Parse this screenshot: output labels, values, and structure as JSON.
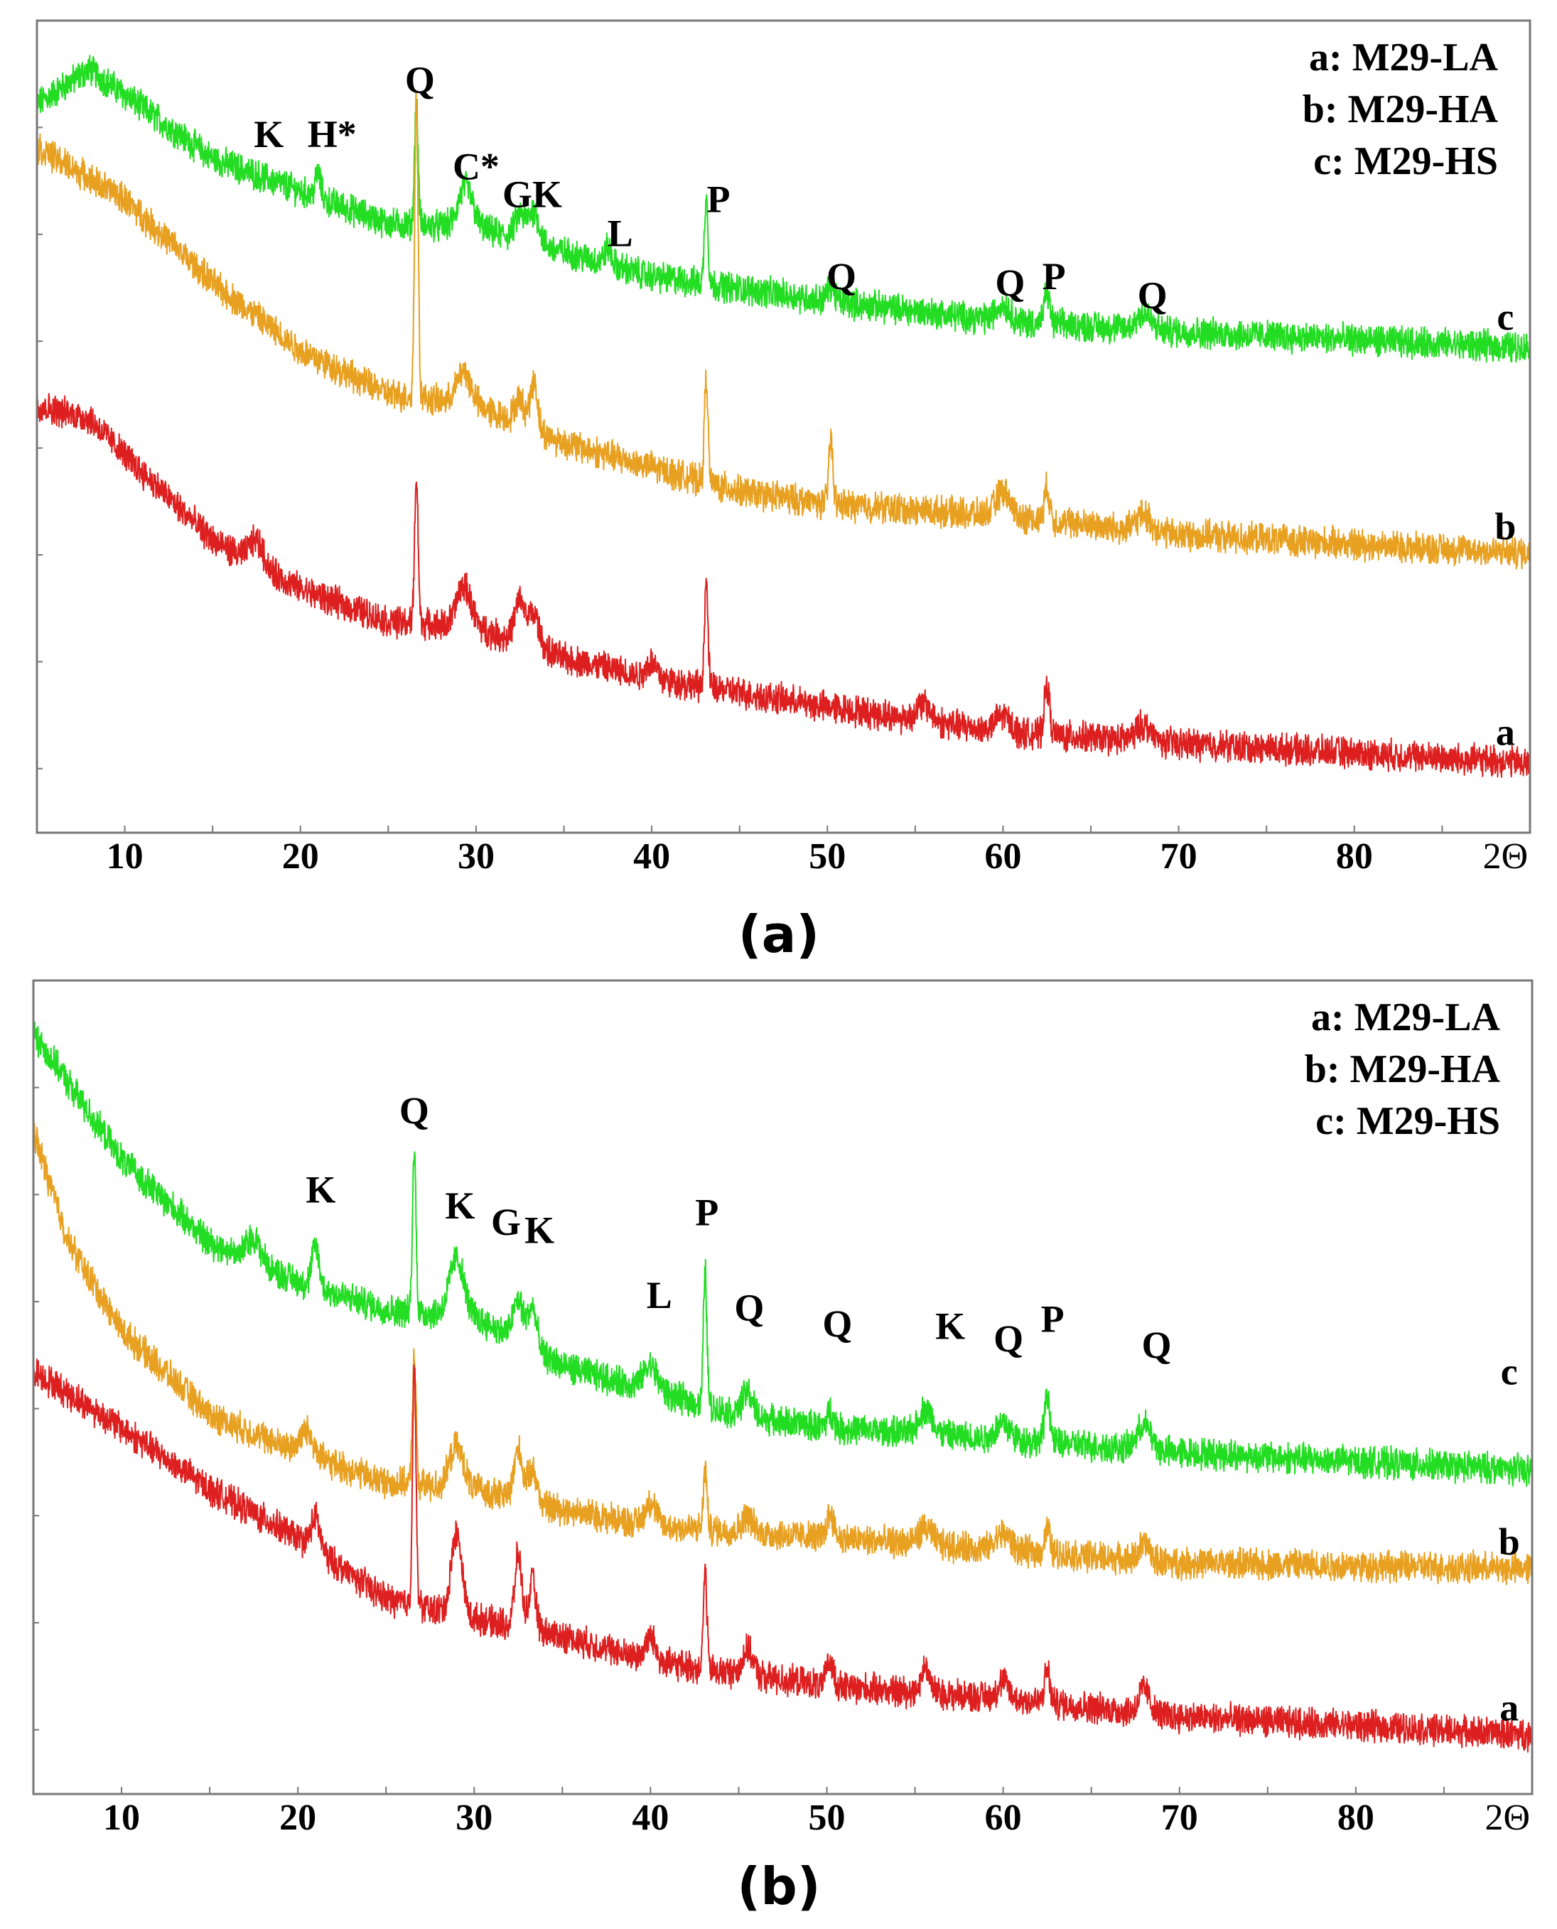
{
  "chart_data": [
    {
      "type": "line",
      "panel_label": "(a)",
      "xlabel": "2Θ",
      "xlim": [
        5,
        90
      ],
      "ylim": [
        0,
        100
      ],
      "xticks": [
        10,
        20,
        30,
        40,
        50,
        60,
        70,
        80
      ],
      "xtick_labels": [
        "10",
        "20",
        "30",
        "40",
        "50",
        "60",
        "70",
        "80"
      ],
      "ylabel": "",
      "legend": {
        "position": "top-right",
        "entries": [
          "a: M29-LA",
          "b: M29-HA",
          "c: M29-HS"
        ]
      },
      "series": [
        {
          "name": "c",
          "tag": "c",
          "color": "#22dd22",
          "background": [
            [
              5,
              89.7
            ],
            [
              8,
              94
            ],
            [
              15,
              83
            ],
            [
              20,
              79
            ],
            [
              25,
              75
            ],
            [
              30,
              74.5
            ],
            [
              35,
              71.5
            ],
            [
              40,
              68.5
            ],
            [
              50,
              65.5
            ],
            [
              60,
              63
            ],
            [
              70,
              61.7
            ],
            [
              90,
              59.7
            ]
          ],
          "peaks": [
            [
              21,
              3,
              0.15
            ],
            [
              26.6,
              15,
              0.1
            ],
            [
              29.4,
              5,
              0.4
            ],
            [
              32.5,
              3,
              0.3
            ],
            [
              33.3,
              4,
              0.3
            ],
            [
              37.5,
              2,
              0.2
            ],
            [
              43.1,
              11,
              0.1
            ],
            [
              50.2,
              2,
              0.2
            ],
            [
              60,
              2,
              0.4
            ],
            [
              62.5,
              4,
              0.15
            ],
            [
              68,
              2,
              0.4
            ]
          ]
        },
        {
          "name": "b",
          "tag": "b",
          "color": "#e8a020",
          "background": [
            [
              5,
              84.4
            ],
            [
              10,
              78
            ],
            [
              15,
              67.7
            ],
            [
              20,
              59.4
            ],
            [
              25,
              54
            ],
            [
              30,
              52.6
            ],
            [
              35,
              48
            ],
            [
              40,
              45
            ],
            [
              45,
              42
            ],
            [
              50,
              40.5
            ],
            [
              60,
              39
            ],
            [
              70,
              36.7
            ],
            [
              90,
              34.4
            ]
          ],
          "peaks": [
            [
              26.6,
              37,
              0.1
            ],
            [
              29.3,
              4,
              0.4
            ],
            [
              32.5,
              3,
              0.3
            ],
            [
              33.3,
              6,
              0.2
            ],
            [
              43.1,
              13,
              0.1
            ],
            [
              50.2,
              8,
              0.12
            ],
            [
              60,
              3,
              0.4
            ],
            [
              62.5,
              4,
              0.15
            ],
            [
              68,
              2,
              0.4
            ]
          ]
        },
        {
          "name": "a",
          "tag": "a",
          "color": "#dd1f1f",
          "background": [
            [
              5,
              52.6
            ],
            [
              8,
              51
            ],
            [
              10,
              46.5
            ],
            [
              15,
              36
            ],
            [
              20,
              30
            ],
            [
              25,
              26
            ],
            [
              30,
              25.3
            ],
            [
              35,
              21.5
            ],
            [
              40,
              19
            ],
            [
              50,
              15.5
            ],
            [
              60,
              12.4
            ],
            [
              70,
              11
            ],
            [
              90,
              8.6
            ]
          ],
          "peaks": [
            [
              17.5,
              3,
              0.4
            ],
            [
              26.6,
              18,
              0.1
            ],
            [
              29.3,
              5,
              0.4
            ],
            [
              32.5,
              5,
              0.3
            ],
            [
              33.3,
              4,
              0.3
            ],
            [
              40,
              2,
              0.3
            ],
            [
              43.1,
              13,
              0.1
            ],
            [
              55.5,
              2,
              0.4
            ],
            [
              60,
              2,
              0.4
            ],
            [
              62.5,
              6,
              0.15
            ],
            [
              68,
              2,
              0.4
            ]
          ]
        }
      ],
      "annotations": [
        {
          "text": "K",
          "x": 18.2,
          "y": 86
        },
        {
          "text": "H*",
          "x": 21.8,
          "y": 86
        },
        {
          "text": "Q",
          "x": 26.8,
          "y": 92.7
        },
        {
          "text": "C*",
          "x": 30,
          "y": 82
        },
        {
          "text": "GK",
          "x": 33.2,
          "y": 78.6
        },
        {
          "text": "L",
          "x": 38.2,
          "y": 73.8
        },
        {
          "text": "P",
          "x": 43.8,
          "y": 78
        },
        {
          "text": "Q",
          "x": 50.8,
          "y": 68.5
        },
        {
          "text": "Q",
          "x": 60.4,
          "y": 67.7
        },
        {
          "text": "P",
          "x": 62.9,
          "y": 68.5
        },
        {
          "text": "Q",
          "x": 68.5,
          "y": 66.2
        },
        {
          "text": "c",
          "x": 88.6,
          "y": 63.5
        },
        {
          "text": "b",
          "x": 88.6,
          "y": 37.7
        },
        {
          "text": "a",
          "x": 88.6,
          "y": 12.4
        }
      ]
    },
    {
      "type": "line",
      "panel_label": "(b)",
      "xlabel": "2Θ",
      "xlim": [
        5,
        90
      ],
      "ylim": [
        0,
        100
      ],
      "xticks": [
        10,
        20,
        30,
        40,
        50,
        60,
        70,
        80
      ],
      "xtick_labels": [
        "10",
        "20",
        "30",
        "40",
        "50",
        "60",
        "70",
        "80"
      ],
      "ylabel": "",
      "legend": {
        "position": "top-right",
        "entries": [
          "a: M29-LA",
          "b: M29-HA",
          "c: M29-HS"
        ]
      },
      "series": [
        {
          "name": "c",
          "tag": "c",
          "color": "#22dd22",
          "background": [
            [
              5,
              93.5
            ],
            [
              10,
              78
            ],
            [
              15,
              67.8
            ],
            [
              20,
              63
            ],
            [
              25,
              59.5
            ],
            [
              30,
              58.7
            ],
            [
              35,
              52.6
            ],
            [
              40,
              49.6
            ],
            [
              45,
              46.6
            ],
            [
              50,
              45
            ],
            [
              60,
              43.6
            ],
            [
              70,
              42
            ],
            [
              90,
              39.8
            ]
          ],
          "peaks": [
            [
              17.5,
              3,
              0.4
            ],
            [
              21,
              5,
              0.2
            ],
            [
              26.6,
              19.7,
              0.1
            ],
            [
              29,
              7,
              0.4
            ],
            [
              32.5,
              5,
              0.3
            ],
            [
              33.3,
              5,
              0.25
            ],
            [
              40,
              3,
              0.4
            ],
            [
              43.1,
              16.6,
              0.1
            ],
            [
              45.5,
              3,
              0.3
            ],
            [
              50.2,
              2,
              0.2
            ],
            [
              55.6,
              3,
              0.4
            ],
            [
              60,
              2,
              0.4
            ],
            [
              62.5,
              6,
              0.15
            ],
            [
              68,
              3,
              0.4
            ]
          ]
        },
        {
          "name": "b",
          "tag": "b",
          "color": "#e8a020",
          "background": [
            [
              5,
              81.4
            ],
            [
              7,
              67.8
            ],
            [
              10,
              57
            ],
            [
              15,
              46.6
            ],
            [
              20,
              42
            ],
            [
              25,
              38.3
            ],
            [
              30,
              37.5
            ],
            [
              35,
              35
            ],
            [
              40,
              33
            ],
            [
              50,
              31.5
            ],
            [
              60,
              30
            ],
            [
              70,
              28.4
            ],
            [
              90,
              27.7
            ]
          ],
          "peaks": [
            [
              20.5,
              3,
              0.4
            ],
            [
              26.6,
              16,
              0.1
            ],
            [
              29,
              5,
              0.4
            ],
            [
              32.5,
              6,
              0.25
            ],
            [
              33.3,
              4,
              0.25
            ],
            [
              40,
              3,
              0.3
            ],
            [
              43.1,
              7.5,
              0.1
            ],
            [
              45.5,
              2,
              0.3
            ],
            [
              50.2,
              3,
              0.2
            ],
            [
              55.6,
              2,
              0.4
            ],
            [
              60,
              2,
              0.4
            ],
            [
              62.5,
              3,
              0.15
            ],
            [
              68,
              2,
              0.3
            ]
          ]
        },
        {
          "name": "a",
          "tag": "a",
          "color": "#dd1f1f",
          "background": [
            [
              5,
              52
            ],
            [
              10,
              45
            ],
            [
              15,
              37.5
            ],
            [
              20,
              31.5
            ],
            [
              25,
              24
            ],
            [
              30,
              21.6
            ],
            [
              35,
              19.4
            ],
            [
              40,
              16.3
            ],
            [
              45,
              14.8
            ],
            [
              50,
              13.3
            ],
            [
              60,
              11.8
            ],
            [
              70,
              9.5
            ],
            [
              90,
              7.3
            ]
          ],
          "peaks": [
            [
              21,
              4,
              0.25
            ],
            [
              26.6,
              29.5,
              0.1
            ],
            [
              29,
              10,
              0.3
            ],
            [
              32.5,
              9,
              0.2
            ],
            [
              33.3,
              6,
              0.2
            ],
            [
              40,
              3,
              0.3
            ],
            [
              43.1,
              12,
              0.1
            ],
            [
              45.5,
              3,
              0.3
            ],
            [
              50.2,
              3,
              0.2
            ],
            [
              55.6,
              3,
              0.25
            ],
            [
              60,
              2,
              0.3
            ],
            [
              62.5,
              4,
              0.15
            ],
            [
              68,
              3,
              0.3
            ]
          ]
        }
      ],
      "annotations": [
        {
          "text": "K",
          "x": 21.3,
          "y": 74.3
        },
        {
          "text": "Q",
          "x": 26.6,
          "y": 84
        },
        {
          "text": "K",
          "x": 29.2,
          "y": 72.3
        },
        {
          "text": "G",
          "x": 31.8,
          "y": 70.3
        },
        {
          "text": "K",
          "x": 33.7,
          "y": 69.3
        },
        {
          "text": "L",
          "x": 40.5,
          "y": 61.3
        },
        {
          "text": "P",
          "x": 43.2,
          "y": 71.5
        },
        {
          "text": "Q",
          "x": 45.6,
          "y": 59.8
        },
        {
          "text": "Q",
          "x": 50.6,
          "y": 57.8
        },
        {
          "text": "K",
          "x": 57,
          "y": 57.5
        },
        {
          "text": "Q",
          "x": 60.3,
          "y": 56
        },
        {
          "text": "P",
          "x": 62.8,
          "y": 58.4
        },
        {
          "text": "Q",
          "x": 68.7,
          "y": 55.2
        },
        {
          "text": "c",
          "x": 88.7,
          "y": 51.9
        },
        {
          "text": "b",
          "x": 88.7,
          "y": 31
        },
        {
          "text": "a",
          "x": 88.7,
          "y": 10.6
        }
      ]
    }
  ]
}
